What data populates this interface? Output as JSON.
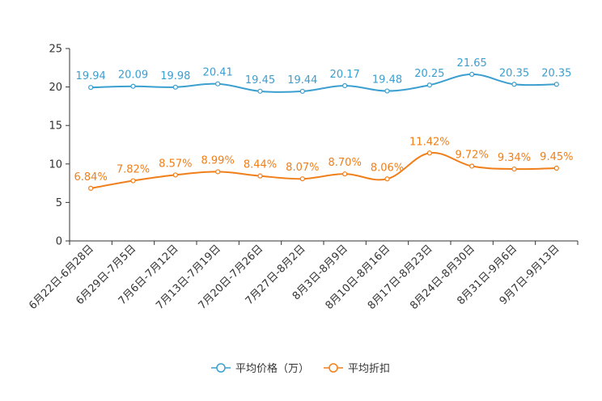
{
  "chart_data": {
    "type": "line",
    "title": "",
    "xlabel": "",
    "ylabel": "",
    "ylim": [
      0,
      25
    ],
    "yticks": [
      0,
      5,
      10,
      15,
      20,
      25
    ],
    "grid": false,
    "legend_position": "bottom-center",
    "categories": [
      "6月22日-6月28日",
      "6月29日-7月5日",
      "7月6日-7月12日",
      "7月13日-7月19日",
      "7月20日-7月26日",
      "7月27日-8月2日",
      "8月3日-8月9日",
      "8月10日-8月16日",
      "8月17日-8月23日",
      "8月24日-8月30日",
      "8月31日-9月6日",
      "9月7日-9月13日"
    ],
    "series": [
      {
        "name": "平均价格（万）",
        "color": "#3b9fd0",
        "values": [
          19.94,
          20.09,
          19.98,
          20.41,
          19.45,
          19.44,
          20.17,
          19.48,
          20.25,
          21.65,
          20.35,
          20.35
        ],
        "labels": [
          "19.94",
          "20.09",
          "19.98",
          "20.41",
          "19.45",
          "19.44",
          "20.17",
          "19.48",
          "20.25",
          "21.65",
          "20.35",
          "20.35"
        ]
      },
      {
        "name": "平均折扣",
        "color": "#f07f1a",
        "values": [
          6.84,
          7.82,
          8.57,
          8.99,
          8.44,
          8.07,
          8.7,
          8.06,
          11.42,
          9.72,
          9.34,
          9.45
        ],
        "labels": [
          "6.84%",
          "7.82%",
          "8.57%",
          "8.99%",
          "8.44%",
          "8.07%",
          "8.70%",
          "8.06%",
          "11.42%",
          "9.72%",
          "9.34%",
          "9.45%"
        ]
      }
    ]
  }
}
